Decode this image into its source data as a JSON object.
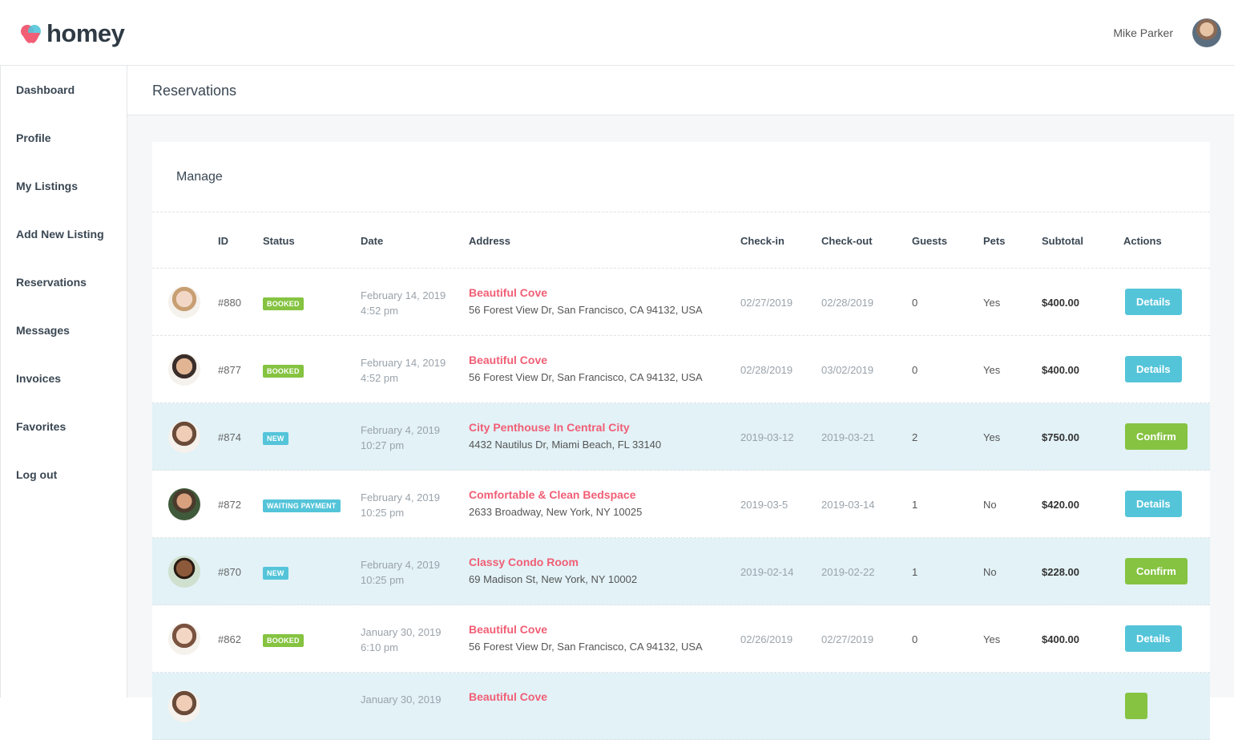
{
  "header": {
    "logo_text": "homey",
    "user_name": "Mike Parker",
    "brand_color": "#f15e75",
    "accent_color": "#54c4d9"
  },
  "sidebar": {
    "items": [
      {
        "label": "Dashboard"
      },
      {
        "label": "Profile"
      },
      {
        "label": "My Listings"
      },
      {
        "label": "Add New Listing"
      },
      {
        "label": "Reservations"
      },
      {
        "label": "Messages"
      },
      {
        "label": "Invoices"
      },
      {
        "label": "Favorites"
      },
      {
        "label": "Log out"
      }
    ]
  },
  "main": {
    "page_title": "Reservations",
    "card_title": "Manage",
    "columns": [
      "ID",
      "Status",
      "Date",
      "Address",
      "Check-in",
      "Check-out",
      "Guests",
      "Pets",
      "Subtotal",
      "Actions"
    ]
  },
  "reservations": [
    {
      "id": "#880",
      "status": "BOOKED",
      "date": "February 14, 2019",
      "time": "4:52 pm",
      "title": "Beautiful Cove",
      "address": "56 Forest View Dr, San Francisco, CA 94132, USA",
      "checkin": "02/27/2019",
      "checkout": "02/28/2019",
      "guests": "0",
      "pets": "Yes",
      "subtotal": "$400.00",
      "action": "Details"
    },
    {
      "id": "#877",
      "status": "BOOKED",
      "date": "February 14, 2019",
      "time": "4:52 pm",
      "title": "Beautiful Cove",
      "address": "56 Forest View Dr, San Francisco, CA 94132, USA",
      "checkin": "02/28/2019",
      "checkout": "03/02/2019",
      "guests": "0",
      "pets": "Yes",
      "subtotal": "$400.00",
      "action": "Details"
    },
    {
      "id": "#874",
      "status": "NEW",
      "date": "February 4, 2019",
      "time": "10:27 pm",
      "title": "City Penthouse In Central City",
      "address": "4432 Nautilus Dr, Miami Beach, FL 33140",
      "checkin": "2019-03-12",
      "checkout": "2019-03-21",
      "guests": "2",
      "pets": "Yes",
      "subtotal": "$750.00",
      "action": "Confirm"
    },
    {
      "id": "#872",
      "status": "WAITING PAYMENT",
      "date": "February 4, 2019",
      "time": "10:25 pm",
      "title": "Comfortable & Clean Bedspace",
      "address": "2633 Broadway, New York, NY 10025",
      "checkin": "2019-03-5",
      "checkout": "2019-03-14",
      "guests": "1",
      "pets": "No",
      "subtotal": "$420.00",
      "action": "Details"
    },
    {
      "id": "#870",
      "status": "NEW",
      "date": "February 4, 2019",
      "time": "10:25 pm",
      "title": "Classy Condo Room",
      "address": "69 Madison St, New York, NY 10002",
      "checkin": "2019-02-14",
      "checkout": "2019-02-22",
      "guests": "1",
      "pets": "No",
      "subtotal": "$228.00",
      "action": "Confirm"
    },
    {
      "id": "#862",
      "status": "BOOKED",
      "date": "January 30, 2019",
      "time": "6:10 pm",
      "title": "Beautiful Cove",
      "address": "56 Forest View Dr, San Francisco, CA 94132, USA",
      "checkin": "02/26/2019",
      "checkout": "02/27/2019",
      "guests": "0",
      "pets": "Yes",
      "subtotal": "$400.00",
      "action": "Details"
    },
    {
      "id": "",
      "status": "",
      "date": "January 30, 2019",
      "time": "",
      "title": "Beautiful Cove",
      "address": "",
      "checkin": "",
      "checkout": "",
      "guests": "",
      "pets": "",
      "subtotal": "",
      "action": ""
    }
  ]
}
